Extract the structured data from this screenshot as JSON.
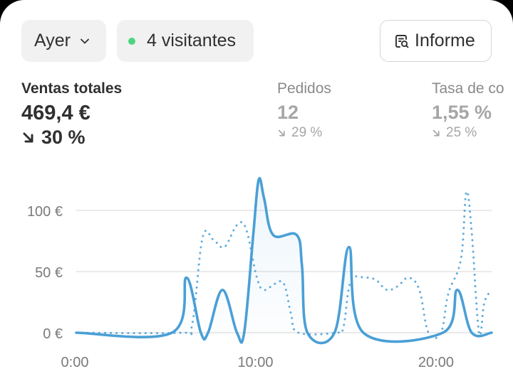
{
  "toolbar": {
    "date_label": "Ayer",
    "visitors_label": "4 visitantes",
    "report_label": "Informe",
    "colors": {
      "live_dot": "#4ed47f"
    }
  },
  "metrics": [
    {
      "label": "Ventas totales",
      "value": "469,4 €",
      "change": "30 %",
      "direction": "down"
    },
    {
      "label": "Pedidos",
      "value": "12",
      "change": "29 %",
      "direction": "down"
    },
    {
      "label": "Tasa de co",
      "value": "1,55 %",
      "change": "25 %",
      "direction": "down"
    }
  ],
  "chart_data": {
    "type": "line",
    "title": "",
    "xlabel": "",
    "ylabel": "",
    "x_ticks": [
      "0:00",
      "10:00",
      "20:00"
    ],
    "y_ticks": [
      "0 €",
      "50 €",
      "100 €"
    ],
    "xlim": [
      0,
      23
    ],
    "ylim": [
      0,
      100
    ],
    "grid": true,
    "colors": {
      "line": "#4a9fd6",
      "grid": "#e3e3e3"
    },
    "series": [
      {
        "style": "solid",
        "points": [
          [
            0,
            0
          ],
          [
            5.3,
            0
          ],
          [
            6.1,
            45
          ],
          [
            6.9,
            0
          ],
          [
            7.3,
            0
          ],
          [
            8.1,
            35
          ],
          [
            8.9,
            0
          ],
          [
            9.3,
            0
          ],
          [
            9.8,
            80
          ],
          [
            10.1,
            125
          ],
          [
            10.4,
            110
          ],
          [
            10.9,
            80
          ],
          [
            12.2,
            80
          ],
          [
            12.5,
            55
          ],
          [
            12.8,
            0
          ],
          [
            14.3,
            0
          ],
          [
            15.1,
            70
          ],
          [
            15.9,
            0
          ],
          [
            20.3,
            0
          ],
          [
            21.1,
            35
          ],
          [
            21.9,
            0
          ],
          [
            23,
            0
          ]
        ]
      },
      {
        "style": "dotted",
        "points": [
          [
            0,
            0
          ],
          [
            5.8,
            0
          ],
          [
            6.4,
            5
          ],
          [
            7.0,
            78
          ],
          [
            7.6,
            76
          ],
          [
            8.2,
            70
          ],
          [
            8.9,
            88
          ],
          [
            9.4,
            85
          ],
          [
            10.0,
            45
          ],
          [
            10.4,
            35
          ],
          [
            11.0,
            40
          ],
          [
            11.5,
            40
          ],
          [
            11.9,
            15
          ],
          [
            12.3,
            0
          ],
          [
            14.4,
            0
          ],
          [
            14.8,
            5
          ],
          [
            15.2,
            42
          ],
          [
            16.0,
            45
          ],
          [
            16.6,
            43
          ],
          [
            17.2,
            35
          ],
          [
            17.8,
            38
          ],
          [
            18.4,
            45
          ],
          [
            19.0,
            35
          ],
          [
            19.5,
            0
          ],
          [
            20.2,
            0
          ],
          [
            20.6,
            32
          ],
          [
            21.3,
            60
          ],
          [
            21.6,
            115
          ],
          [
            21.9,
            82
          ],
          [
            22.3,
            0
          ],
          [
            22.6,
            25
          ],
          [
            23,
            35
          ]
        ]
      }
    ]
  }
}
